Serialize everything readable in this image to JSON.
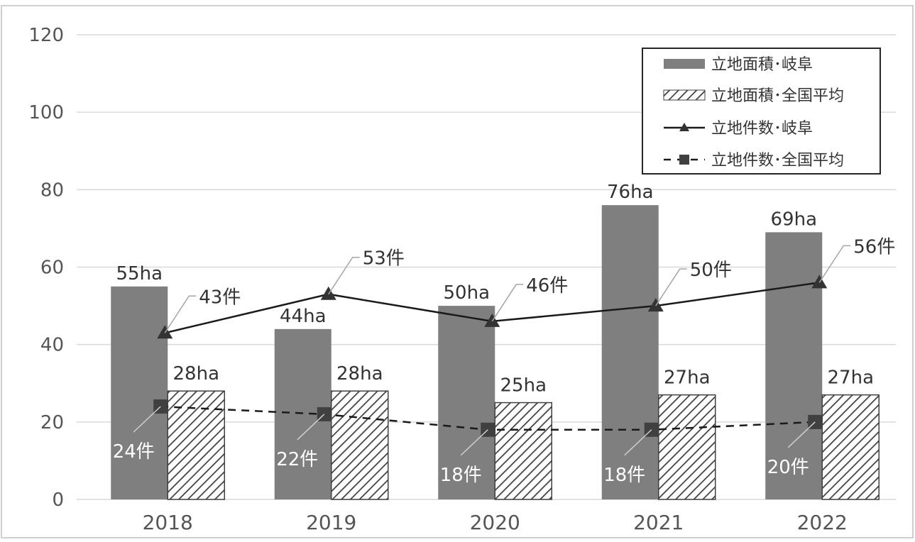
{
  "chart_data": {
    "type": "bar",
    "categories": [
      "2018",
      "2019",
      "2020",
      "2021",
      "2022"
    ],
    "ylim": [
      0,
      120
    ],
    "yticks": [
      0,
      20,
      40,
      60,
      80,
      100,
      120
    ],
    "grid": true,
    "legend_position": "top-right",
    "series": [
      {
        "name": "立地面積･岐阜",
        "kind": "bar",
        "style": "solid",
        "color": "#7f7f7f",
        "values": [
          55,
          44,
          50,
          76,
          69
        ],
        "labels": [
          "55ha",
          "44ha",
          "50ha",
          "76ha",
          "69ha"
        ]
      },
      {
        "name": "立地面積･全国平均",
        "kind": "bar",
        "style": "hatched",
        "color": "#404040",
        "values": [
          28,
          28,
          25,
          27,
          27
        ],
        "labels": [
          "28ha",
          "28ha",
          "25ha",
          "27ha",
          "27ha"
        ]
      },
      {
        "name": "立地件数･岐阜",
        "kind": "line",
        "style": "solid",
        "marker": "triangle",
        "color": "#1a1a1a",
        "values": [
          43,
          53,
          46,
          50,
          56
        ],
        "labels": [
          "43件",
          "53件",
          "46件",
          "50件",
          "56件"
        ]
      },
      {
        "name": "立地件数･全国平均",
        "kind": "line",
        "style": "dashed",
        "marker": "square",
        "color": "#1a1a1a",
        "values": [
          24,
          22,
          18,
          18,
          20
        ],
        "labels": [
          "24件",
          "22件",
          "18件",
          "18件",
          "20件"
        ]
      }
    ]
  }
}
